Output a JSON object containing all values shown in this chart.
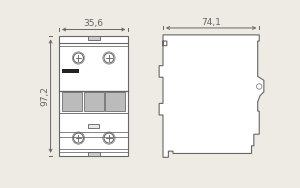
{
  "bg_color": "#eeeae4",
  "line_color": "#666666",
  "dim_color": "#666666",
  "dim_label_35": "35,6",
  "dim_label_74": "74,1",
  "dim_label_97": "97,2",
  "font_size": 6.5,
  "lw": 0.8
}
